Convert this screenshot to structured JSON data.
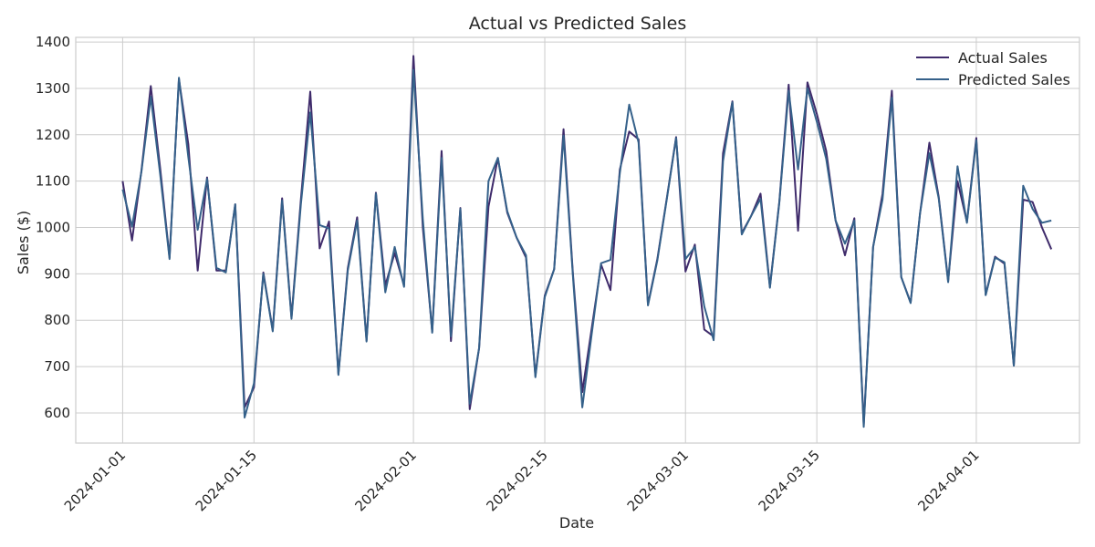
{
  "chart_data": {
    "type": "line",
    "title": "Actual vs Predicted Sales",
    "xlabel": "Date",
    "ylabel": "Sales ($)",
    "xlim": [
      "2023-12-27",
      "2024-04-12"
    ],
    "ylim": [
      535,
      1410
    ],
    "x_ticks": [
      "2024-01-01",
      "2024-01-15",
      "2024-02-01",
      "2024-02-15",
      "2024-03-01",
      "2024-03-15",
      "2024-04-01"
    ],
    "y_ticks": [
      600,
      700,
      800,
      900,
      1000,
      1100,
      1200,
      1300,
      1400
    ],
    "grid": true,
    "legend": "top-right",
    "x_start": "2024-01-01",
    "x_end": "2024-04-09",
    "series": [
      {
        "name": "Actual Sales",
        "color": "#3f2b6b",
        "values": [
          1100,
          972,
          1122,
          1305,
          1128,
          935,
          1320,
          1180,
          907,
          1108,
          907,
          907,
          1050,
          612,
          655,
          903,
          778,
          1063,
          806,
          1060,
          1293,
          955,
          1013,
          684,
          912,
          1022,
          756,
          1075,
          875,
          945,
          875,
          1370,
          1000,
          775,
          1165,
          755,
          1042,
          608,
          740,
          1045,
          1150,
          1032,
          978,
          935,
          680,
          853,
          910,
          1212,
          900,
          645,
          782,
          920,
          865,
          1125,
          1207,
          1190,
          834,
          932,
          1062,
          1195,
          905,
          963,
          780,
          765,
          1160,
          1272,
          988,
          1025,
          1073,
          872,
          1055,
          1308,
          993,
          1313,
          1245,
          1165,
          1015,
          940,
          1020,
          575,
          958,
          1072,
          1295,
          893,
          838,
          1030,
          1183,
          1065,
          885,
          1100,
          1012,
          1193,
          855,
          937,
          922,
          702,
          1060,
          1055,
          1000,
          953
        ]
      },
      {
        "name": "Predicted Sales",
        "color": "#35618a",
        "values": [
          1082,
          1002,
          1120,
          1282,
          1115,
          932,
          1323,
          1152,
          995,
          1105,
          913,
          903,
          1050,
          590,
          664,
          900,
          776,
          1058,
          803,
          1050,
          1248,
          1005,
          998,
          682,
          907,
          1015,
          754,
          1073,
          860,
          958,
          872,
          1340,
          1018,
          773,
          1150,
          765,
          1040,
          620,
          740,
          1100,
          1150,
          1035,
          978,
          940,
          677,
          850,
          910,
          1198,
          895,
          612,
          770,
          923,
          930,
          1117,
          1265,
          1183,
          832,
          929,
          1060,
          1193,
          932,
          958,
          830,
          757,
          1143,
          1270,
          985,
          1025,
          1062,
          870,
          1053,
          1295,
          1125,
          1300,
          1228,
          1148,
          1015,
          965,
          1015,
          570,
          958,
          1060,
          1280,
          893,
          837,
          1030,
          1160,
          1062,
          882,
          1132,
          1010,
          1188,
          854,
          935,
          925,
          702,
          1090,
          1040,
          1010,
          1015
        ]
      }
    ]
  }
}
